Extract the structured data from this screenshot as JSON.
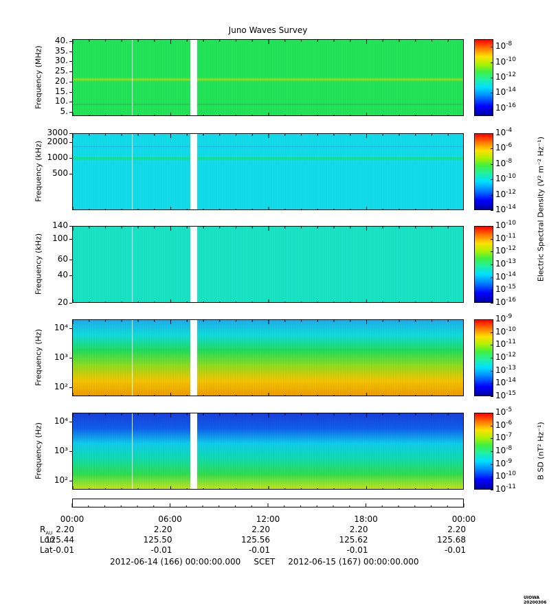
{
  "title": "Juno Waves Survey",
  "footer": {
    "scet_line": "2012-06-14 (166) 00:00:00.000     SCET     2012-06-15 (167) 00:00:00.000",
    "stamp": "UIOWA 20200306"
  },
  "time_axis": {
    "tick_labels": [
      "00:00",
      "06:00",
      "12:00",
      "18:00",
      "00:00"
    ],
    "hours": [
      0,
      6,
      12,
      18,
      24
    ],
    "data_gap_hours": [
      7.2,
      7.6
    ],
    "marker_hour": 3.6
  },
  "ephemeris": {
    "rows": [
      {
        "label": "R",
        "sub": "AU",
        "values": [
          "2.20",
          "2.20",
          "2.20",
          "2.20",
          "2.20"
        ]
      },
      {
        "label": "Lon",
        "sub": "",
        "values": [
          "125.44",
          "125.50",
          "125.56",
          "125.62",
          "125.68"
        ]
      },
      {
        "label": "Lat",
        "sub": "",
        "values": [
          "-0.01",
          "-0.01",
          "-0.01",
          "-0.01",
          "-0.01"
        ]
      }
    ]
  },
  "colorbar_labels": {
    "electric": "Electric Spectral Density (V² m⁻² Hz⁻¹)",
    "magnetic": "B SD (nT² Hz⁻¹)"
  },
  "chart_data": [
    {
      "type": "heatmap",
      "ylabel": "Frequency (MHz)",
      "y_ticks": [
        "40.",
        "35.",
        "30.",
        "25.",
        "20.",
        "15.",
        "10.",
        "5."
      ],
      "y_tick_values": [
        40,
        35,
        30,
        25,
        20,
        15,
        10,
        5
      ],
      "ylim": [
        3,
        41
      ],
      "y_scale": "linear",
      "colorbar": {
        "exponents": [
          -8,
          -10,
          -12,
          -14,
          -16
        ],
        "range": [
          -17,
          -7
        ]
      },
      "background": "#22e85a",
      "bands": [
        {
          "center": 21,
          "width": 2,
          "color": "#a8e018"
        },
        {
          "center": 8.5,
          "width": 1.2,
          "color": "#30c850"
        }
      ]
    },
    {
      "type": "heatmap",
      "ylabel": "Frequency (kHz)",
      "y_ticks": [
        "3000",
        "2000",
        "1000",
        "500"
      ],
      "y_tick_values": [
        3000,
        2000,
        1000,
        500
      ],
      "ylim": [
        100,
        3000
      ],
      "y_scale": "log",
      "colorbar": {
        "exponents": [
          -4,
          -6,
          -8,
          -10,
          -12,
          -14
        ],
        "range": [
          -14,
          -4
        ]
      },
      "background": "#12e0ee",
      "bands": [
        {
          "center": 1000,
          "width": 180,
          "color": "#16e870"
        },
        {
          "center": 1700,
          "width": 150,
          "color": "#2ab8f0"
        }
      ]
    },
    {
      "type": "heatmap",
      "ylabel": "Frequency (kHz)",
      "y_ticks": [
        "140",
        "100",
        "60",
        "40",
        "20"
      ],
      "y_tick_values": [
        140,
        100,
        60,
        40,
        20
      ],
      "ylim": [
        20,
        140
      ],
      "y_scale": "log",
      "colorbar": {
        "exponents": [
          -10,
          -11,
          -12,
          -13,
          -14,
          -15,
          -16
        ],
        "range": [
          -16,
          -10
        ]
      },
      "background": "#18e8c8",
      "bands": []
    },
    {
      "type": "heatmap",
      "ylabel": "Frequency (Hz)",
      "y_ticks": [
        "10⁴",
        "10³",
        "10²"
      ],
      "y_tick_values": [
        10000,
        1000,
        100
      ],
      "ylim": [
        50,
        20000
      ],
      "y_scale": "log",
      "colorbar": {
        "exponents": [
          -9,
          -10,
          -11,
          -12,
          -13,
          -14,
          -15
        ],
        "range": [
          -15,
          -9
        ]
      },
      "gradient": [
        "#f0a000",
        "#f8c800",
        "#90e020",
        "#20e060",
        "#10e0e0",
        "#20b0f0"
      ]
    },
    {
      "type": "heatmap",
      "ylabel": "Frequency (Hz)",
      "y_ticks": [
        "10⁴",
        "10³",
        "10²"
      ],
      "y_tick_values": [
        10000,
        1000,
        100
      ],
      "ylim": [
        50,
        20000
      ],
      "y_scale": "log",
      "colorbar": {
        "exponents": [
          -5,
          -6,
          -7,
          -8,
          -9,
          -10,
          -11
        ],
        "range": [
          -11,
          -5
        ]
      },
      "gradient": [
        "#c8e820",
        "#30e050",
        "#10e0b0",
        "#10d0f0",
        "#1060f0",
        "#1840e0"
      ]
    }
  ]
}
